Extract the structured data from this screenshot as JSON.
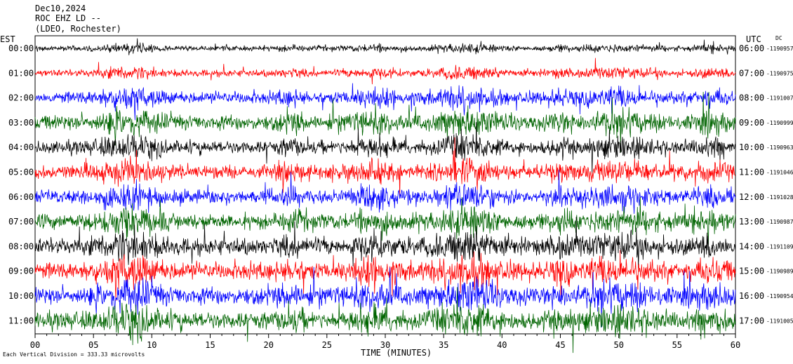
{
  "header": {
    "date": "Dec10,2024",
    "station": "ROC EHZ LD --",
    "network": "(LDEO, Rochester)"
  },
  "left_zone": "EST",
  "right_zone": "UTC",
  "dc_label": "DC",
  "footer": {
    "scale_note": "Each Vertical Division =  333.33 microvolts",
    "xaxis_label": "TIME (MINUTES)"
  },
  "colors": {
    "black": "#000000",
    "red": "#ff0000",
    "blue": "#0000ff",
    "green": "#006400"
  },
  "chart_data": {
    "type": "line",
    "title": "",
    "xlabel": "TIME (MINUTES)",
    "ylabel": "",
    "xlim": [
      0,
      60
    ],
    "x_ticks": [
      "00",
      "05",
      "10",
      "15",
      "20",
      "25",
      "30",
      "35",
      "40",
      "45",
      "50",
      "55",
      "60"
    ],
    "rows": [
      {
        "est": "00:00",
        "utc": "06:00",
        "dc": "-1190957",
        "color": "black"
      },
      {
        "est": "01:00",
        "utc": "07:00",
        "dc": "-1190975",
        "color": "red"
      },
      {
        "est": "02:00",
        "utc": "08:00",
        "dc": "-1191007",
        "color": "blue"
      },
      {
        "est": "03:00",
        "utc": "09:00",
        "dc": "-1190999",
        "color": "green"
      },
      {
        "est": "04:00",
        "utc": "10:00",
        "dc": "-1190963",
        "color": "black"
      },
      {
        "est": "05:00",
        "utc": "11:00",
        "dc": "-1191046",
        "color": "red"
      },
      {
        "est": "06:00",
        "utc": "12:00",
        "dc": "-1191028",
        "color": "blue"
      },
      {
        "est": "07:00",
        "utc": "13:00",
        "dc": "-1190987",
        "color": "green"
      },
      {
        "est": "08:00",
        "utc": "14:00",
        "dc": "-1191109",
        "color": "black"
      },
      {
        "est": "09:00",
        "utc": "15:00",
        "dc": "-1190989",
        "color": "red"
      },
      {
        "est": "10:00",
        "utc": "16:00",
        "dc": "-1190954",
        "color": "blue"
      },
      {
        "est": "11:00",
        "utc": "17:00",
        "dc": "-1191005",
        "color": "green"
      }
    ]
  }
}
